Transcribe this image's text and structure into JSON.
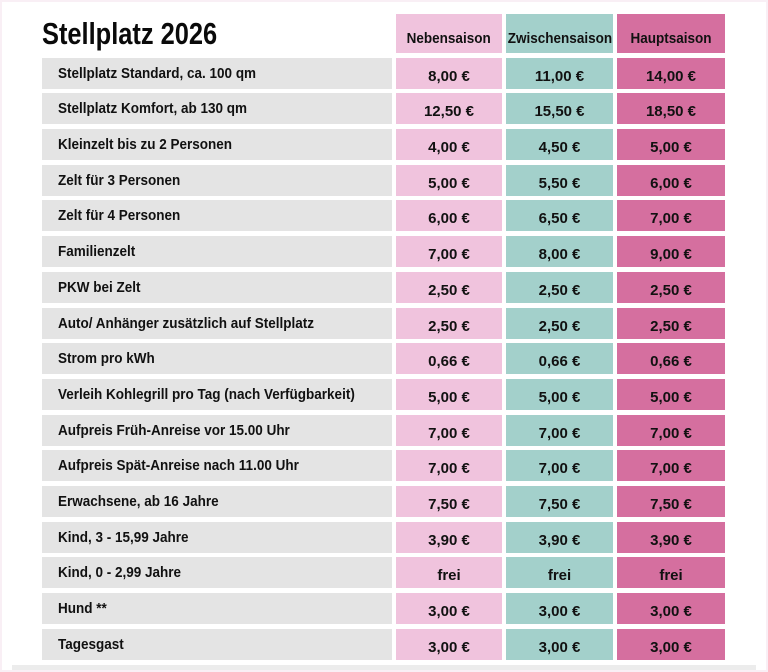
{
  "title": "Stellplatz 2026",
  "colors": {
    "nebensaison": "#f0c3dd",
    "zwischensaison": "#a3d0cb",
    "hauptsaison": "#d56f9f",
    "label_bg": "#e4e4e4"
  },
  "columns": [
    "Nebensaison",
    "Zwischensaison",
    "Hauptsaison"
  ],
  "rows": [
    {
      "label": "Stellplatz Standard, ca. 100 qm",
      "prices": [
        "8,00 €",
        "11,00 €",
        "14,00 €"
      ]
    },
    {
      "label": "Stellplatz Komfort, ab 130 qm",
      "prices": [
        "12,50 €",
        "15,50 €",
        "18,50 €"
      ]
    },
    {
      "label": "Kleinzelt bis zu 2 Personen",
      "prices": [
        "4,00 €",
        "4,50 €",
        "5,00 €"
      ]
    },
    {
      "label": "Zelt für 3 Personen",
      "prices": [
        "5,00 €",
        "5,50 €",
        "6,00 €"
      ]
    },
    {
      "label": "Zelt für 4 Personen",
      "prices": [
        "6,00 €",
        "6,50 €",
        "7,00 €"
      ]
    },
    {
      "label": "Familienzelt",
      "prices": [
        "7,00 €",
        "8,00 €",
        "9,00 €"
      ]
    },
    {
      "label": "PKW bei Zelt",
      "prices": [
        "2,50 €",
        "2,50 €",
        "2,50 €"
      ]
    },
    {
      "label": "Auto/ Anhänger zusätzlich auf Stellplatz",
      "prices": [
        "2,50 €",
        "2,50 €",
        "2,50 €"
      ]
    },
    {
      "label": "Strom pro kWh",
      "prices": [
        "0,66 €",
        "0,66 €",
        "0,66 €"
      ]
    },
    {
      "label": "Verleih Kohlegrill pro Tag (nach Verfügbarkeit)",
      "prices": [
        "5,00 €",
        "5,00 €",
        "5,00 €"
      ]
    },
    {
      "label": "Aufpreis Früh-Anreise vor 15.00 Uhr",
      "prices": [
        "7,00 €",
        "7,00 €",
        "7,00 €"
      ]
    },
    {
      "label": "Aufpreis Spät-Anreise nach 11.00 Uhr",
      "prices": [
        "7,00 €",
        "7,00 €",
        "7,00 €"
      ]
    },
    {
      "label": "Erwachsene, ab 16 Jahre",
      "prices": [
        "7,50 €",
        "7,50 €",
        "7,50 €"
      ]
    },
    {
      "label": "Kind, 3 - 15,99 Jahre",
      "prices": [
        "3,90 €",
        "3,90 €",
        "3,90 €"
      ]
    },
    {
      "label": "Kind, 0 - 2,99 Jahre",
      "prices": [
        "frei",
        "frei",
        "frei"
      ]
    },
    {
      "label": "Hund **",
      "prices": [
        "3,00 €",
        "3,00 €",
        "3,00 €"
      ]
    },
    {
      "label": "Tagesgast",
      "prices": [
        "3,00 €",
        "3,00 €",
        "3,00 €"
      ]
    }
  ]
}
